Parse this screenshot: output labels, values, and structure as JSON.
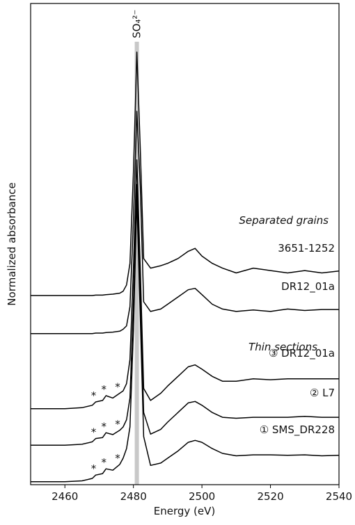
{
  "chart_data": {
    "type": "line",
    "xlabel": "Energy (eV)",
    "ylabel": "Normalized absorbance",
    "xlim": [
      2450,
      2540
    ],
    "xticks": [
      2460,
      2480,
      2500,
      2520,
      2540
    ],
    "ylim": [
      0,
      100
    ],
    "highlight": {
      "x": 2481,
      "label": "SO₄²⁻",
      "color": "#c8c8c8"
    },
    "group_labels": [
      "Separated grains",
      "Thin sections"
    ],
    "pre_edge_marks": {
      "label": "*",
      "x": [
        2469,
        2472,
        2476
      ]
    },
    "x": [
      2450,
      2460,
      2465,
      2468,
      2469,
      2471,
      2472,
      2474,
      2476,
      2477,
      2478,
      2479,
      2480,
      2481,
      2482,
      2483,
      2485,
      2488,
      2490,
      2493,
      2496,
      2498,
      2500,
      2503,
      2506,
      2510,
      2515,
      2520,
      2525,
      2530,
      2535,
      2540
    ],
    "series": [
      {
        "name": "3651-1252",
        "color": "#000000",
        "values": [
          39.3,
          39.3,
          39.3,
          39.3,
          39.4,
          39.4,
          39.5,
          39.6,
          39.8,
          40.2,
          41.5,
          46,
          65,
          89.9,
          70,
          47,
          45,
          45.5,
          46,
          47,
          48.5,
          49.1,
          47.5,
          46,
          45,
          44,
          45,
          44.5,
          44,
          44.5,
          44,
          44.4
        ]
      },
      {
        "name": "DR12_01a",
        "color": "#000000",
        "values": [
          31.4,
          31.4,
          31.4,
          31.4,
          31.5,
          31.5,
          31.6,
          31.7,
          31.9,
          32.3,
          33,
          37,
          55,
          77.6,
          62,
          38,
          36,
          36.5,
          37.5,
          39,
          40.5,
          40.8,
          39.5,
          37.5,
          36.5,
          36,
          36.3,
          36,
          36.5,
          36.2,
          36.4,
          36.4
        ]
      },
      {
        "name": "③ DR12_01a",
        "color": "#000000",
        "values": [
          15.8,
          15.8,
          16,
          16.5,
          17.2,
          17.5,
          18.5,
          18,
          19,
          19.5,
          21,
          26,
          45,
          67.5,
          45,
          20,
          17.5,
          19,
          20.5,
          22.5,
          24.5,
          24.9,
          24,
          22.5,
          21.5,
          21.5,
          22,
          21.8,
          22,
          22,
          22,
          22
        ]
      },
      {
        "name": "② L7",
        "color": "#000000",
        "values": [
          8.2,
          8.2,
          8.4,
          8.9,
          9.6,
          9.8,
          10.8,
          10.4,
          11.3,
          12,
          13.5,
          18,
          38,
          62.4,
          40,
          15,
          10.5,
          11.5,
          13,
          15,
          17,
          17.3,
          16.5,
          15,
          14,
          13.8,
          14,
          14,
          14,
          14.2,
          14,
          14
        ]
      },
      {
        "name": "① SMS_DR228",
        "color": "#000000",
        "values": [
          0.6,
          0.6,
          0.8,
          1.3,
          2,
          2.3,
          3.3,
          3,
          4.2,
          5.5,
          7.5,
          12,
          32,
          59.5,
          35,
          10,
          4,
          4.5,
          5.5,
          7,
          8.8,
          9.2,
          8.8,
          7.5,
          6.5,
          6,
          6.2,
          6.2,
          6.1,
          6.2,
          6,
          6.1
        ]
      }
    ]
  }
}
